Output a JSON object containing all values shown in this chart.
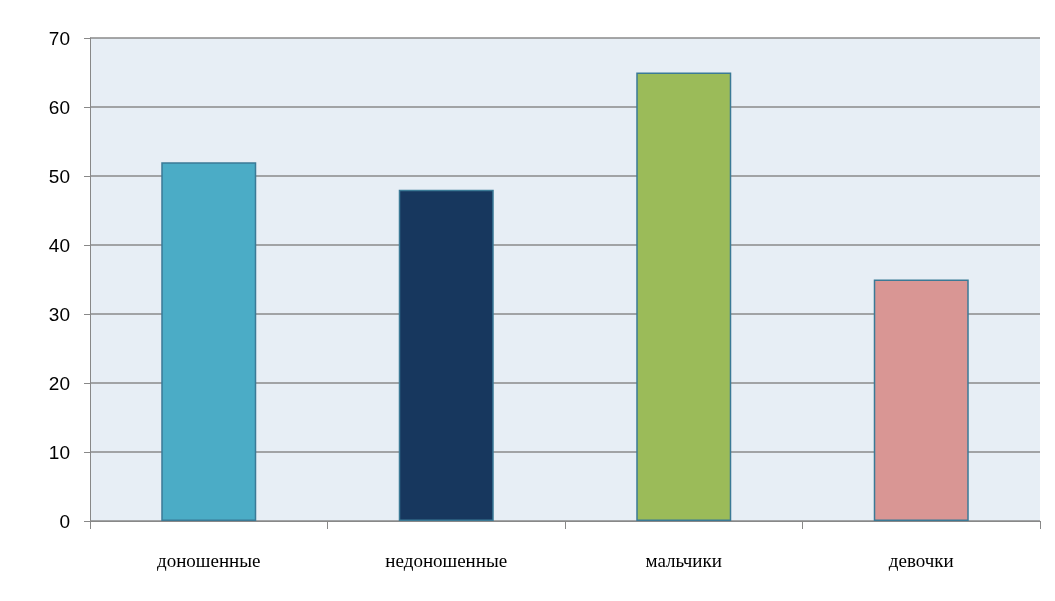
{
  "chart_data": {
    "type": "bar",
    "categories": [
      "доношенные",
      "недоношенные",
      "мальчики",
      "девочки"
    ],
    "values": [
      52,
      48,
      65,
      35
    ],
    "colors": [
      "#4bacc6",
      "#17375e",
      "#9bbb59",
      "#d99694"
    ],
    "ylim": [
      0,
      70
    ],
    "yticks": [
      0,
      10,
      20,
      30,
      40,
      50,
      60,
      70
    ],
    "grid": "y"
  }
}
